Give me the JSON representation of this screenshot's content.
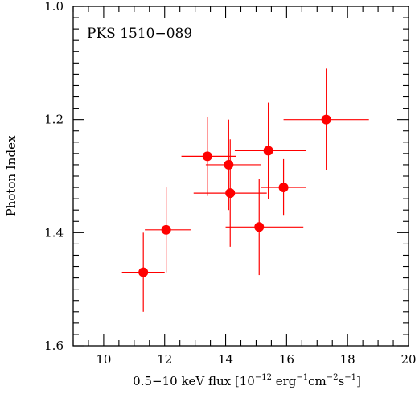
{
  "chart_data": {
    "type": "scatter",
    "annotation": "PKS 1510−089",
    "xlabel": {
      "main": "0.5−10 keV flux [10",
      "exp1": "−12",
      "unit1": " erg",
      "exp2": "−1",
      "unit2": "cm",
      "exp3": "−2",
      "unit3": "s",
      "exp4": "−1",
      "close": "]"
    },
    "ylabel": "Photon Index",
    "xlim": [
      9,
      20
    ],
    "ylim": [
      1.0,
      1.6
    ],
    "y_inverted": true,
    "xticks": [
      10,
      12,
      14,
      16,
      18,
      20
    ],
    "yticks": [
      1.0,
      1.2,
      1.4,
      1.6
    ],
    "ytick_labels": [
      "1.0",
      "1.2",
      "1.4",
      "1.6"
    ],
    "color": "#ff0000",
    "points": [
      {
        "x": 11.3,
        "y": 1.47,
        "xerr": [
          0.7,
          0.7
        ],
        "yerr": [
          0.07,
          0.07
        ]
      },
      {
        "x": 12.05,
        "y": 1.395,
        "xerr": [
          0.7,
          0.8
        ],
        "yerr": [
          0.075,
          0.075
        ]
      },
      {
        "x": 13.4,
        "y": 1.265,
        "xerr": [
          0.85,
          0.95
        ],
        "yerr": [
          0.07,
          0.07
        ]
      },
      {
        "x": 14.1,
        "y": 1.28,
        "xerr": [
          0.75,
          1.05
        ],
        "yerr": [
          0.08,
          0.08
        ]
      },
      {
        "x": 14.15,
        "y": 1.33,
        "xerr": [
          1.2,
          1.2
        ],
        "yerr": [
          0.095,
          0.095
        ]
      },
      {
        "x": 15.1,
        "y": 1.39,
        "xerr": [
          1.1,
          1.45
        ],
        "yerr": [
          0.085,
          0.085
        ]
      },
      {
        "x": 15.4,
        "y": 1.255,
        "xerr": [
          1.1,
          1.25
        ],
        "yerr": [
          0.085,
          0.085
        ]
      },
      {
        "x": 15.9,
        "y": 1.32,
        "xerr": [
          0.75,
          0.75
        ],
        "yerr": [
          0.05,
          0.05
        ]
      },
      {
        "x": 17.3,
        "y": 1.2,
        "xerr": [
          1.4,
          1.4
        ],
        "yerr": [
          0.09,
          0.09
        ]
      }
    ]
  }
}
